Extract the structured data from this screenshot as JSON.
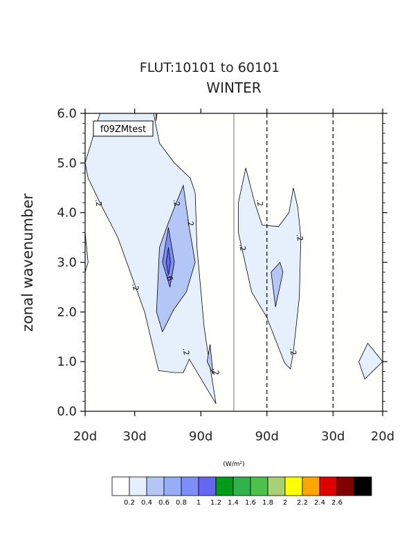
{
  "chart_data": {
    "type": "contour",
    "title": "FLUT:10101 to 60101",
    "subtitle": "WINTER",
    "ylabel": "zonal wavenumber",
    "xlabel": "",
    "case_label": "f09ZMtest",
    "ylim": [
      0,
      6
    ],
    "y_ticks": [
      "0.0",
      "1.0",
      "2.0",
      "3.0",
      "4.0",
      "5.0",
      "6.0"
    ],
    "x_ticks": [
      "20d",
      "30d",
      "90d",
      "90d",
      "30d",
      "20d"
    ],
    "x_tick_positions": [
      -0.5,
      -0.3333,
      -0.1111,
      0.1111,
      0.3333,
      0.5
    ],
    "x_range": [
      -0.5,
      0.5
    ],
    "reference_lines": [
      {
        "x": 0.0,
        "style": "solid"
      },
      {
        "x": 0.1111,
        "style": "dashed"
      },
      {
        "x": 0.3333,
        "style": "dashed"
      }
    ],
    "contour_labels": [
      {
        "text": ".2",
        "x": -0.454,
        "y": 4.2
      },
      {
        "text": ".2",
        "x": -0.33,
        "y": 2.5
      },
      {
        "text": ".2",
        "x": -0.192,
        "y": 4.2
      },
      {
        "text": ".2",
        "x": -0.145,
        "y": 3.8
      },
      {
        "text": ".2",
        "x": -0.16,
        "y": 1.2
      },
      {
        "text": ".2",
        "x": -0.06,
        "y": 0.8
      },
      {
        "text": ".6",
        "x": -0.215,
        "y": 2.7
      },
      {
        "text": ".2",
        "x": 0.03,
        "y": 3.3
      },
      {
        "text": ".2",
        "x": 0.088,
        "y": 4.2
      },
      {
        "text": ".2",
        "x": 0.222,
        "y": 3.5
      },
      {
        "text": ".2",
        "x": 0.2,
        "y": 1.2
      }
    ],
    "colorbar": {
      "units": "(W/m²)",
      "levels": [
        "0.2",
        "0.4",
        "0.6",
        "0.8",
        "1",
        "1.2",
        "1.4",
        "1.6",
        "1.8",
        "2",
        "2.2",
        "2.4",
        "2.6"
      ],
      "colors": [
        "#ffffff",
        "#e6f0fc",
        "#b4c6f6",
        "#97adf7",
        "#7e8ef8",
        "#6666ee",
        "#009b1a",
        "#33b14a",
        "#4cc24d",
        "#a8d176",
        "#ffff00",
        "#ffa500",
        "#e00000",
        "#7f0000",
        "#000000"
      ]
    },
    "regions": [
      {
        "level": 0.2,
        "color": "#e6f0fc",
        "points": [
          [
            -0.5,
            5
          ],
          [
            -0.45,
            6
          ],
          [
            -0.27,
            6
          ],
          [
            -0.25,
            5.4
          ],
          [
            -0.2,
            5
          ],
          [
            -0.147,
            4.7
          ],
          [
            -0.13,
            4.4
          ],
          [
            -0.124,
            3.3
          ],
          [
            -0.1,
            1.7
          ],
          [
            -0.083,
            1.0
          ],
          [
            -0.06,
            0.15
          ],
          [
            -0.09,
            0.45
          ],
          [
            -0.15,
            1.05
          ],
          [
            -0.17,
            0.78
          ],
          [
            -0.2,
            0.78
          ],
          [
            -0.253,
            0.82
          ],
          [
            -0.3,
            2
          ],
          [
            -0.33,
            2.5
          ],
          [
            -0.39,
            3.5
          ],
          [
            -0.45,
            4.2
          ],
          [
            -0.49,
            4.7
          ]
        ]
      },
      {
        "level": 0.2,
        "color": "#e6f0fc",
        "points": [
          [
            0.015,
            4.2
          ],
          [
            0.04,
            4.9
          ],
          [
            0.07,
            4.2
          ],
          [
            0.095,
            3.75
          ],
          [
            0.15,
            3.72
          ],
          [
            0.185,
            4.0
          ],
          [
            0.2,
            4.5
          ],
          [
            0.215,
            4.1
          ],
          [
            0.225,
            3.5
          ],
          [
            0.22,
            2.3
          ],
          [
            0.2,
            1.2
          ],
          [
            0.19,
            0.85
          ],
          [
            0.17,
            0.98
          ],
          [
            0.11,
            1.9
          ],
          [
            0.06,
            2.4
          ],
          [
            0.03,
            3.2
          ],
          [
            0.015,
            3.6
          ]
        ]
      },
      {
        "level": 0.2,
        "color": "#e6f0fc",
        "points": [
          [
            -0.5,
            3.6
          ],
          [
            -0.49,
            3.0
          ],
          [
            -0.5,
            2.8
          ]
        ]
      },
      {
        "level": 0.2,
        "color": "#e6f0fc",
        "points": [
          [
            0.42,
            1.0
          ],
          [
            0.45,
            1.37
          ],
          [
            0.5,
            1.0
          ],
          [
            0.44,
            0.65
          ]
        ]
      },
      {
        "level": 0.4,
        "color": "#b4c6f6",
        "points": [
          [
            -0.17,
            4.55
          ],
          [
            -0.15,
            3.7
          ],
          [
            -0.13,
            3.0
          ],
          [
            -0.16,
            2.4
          ],
          [
            -0.202,
            2.05
          ],
          [
            -0.24,
            1.6
          ],
          [
            -0.26,
            2.0
          ],
          [
            -0.25,
            3.3
          ],
          [
            -0.22,
            3.8
          ]
        ]
      },
      {
        "level": 0.4,
        "color": "#b4c6f6",
        "points": [
          [
            -0.08,
            1.35
          ],
          [
            -0.07,
            0.75
          ],
          [
            -0.09,
            1.0
          ]
        ]
      },
      {
        "level": 0.4,
        "color": "#b4c6f6",
        "points": [
          [
            0.155,
            3.0
          ],
          [
            0.125,
            2.8
          ],
          [
            0.14,
            2.1
          ],
          [
            0.165,
            2.8
          ]
        ]
      },
      {
        "level": 0.4,
        "color": "#b4c6f6",
        "points": [
          [
            -0.262,
            6.0
          ],
          [
            -0.262,
            5.85
          ],
          [
            -0.258,
            6.0
          ]
        ]
      },
      {
        "level": 0.6,
        "color": "#7e8ef8",
        "points": [
          [
            -0.22,
            3.7
          ],
          [
            -0.2,
            3.0
          ],
          [
            -0.215,
            2.5
          ],
          [
            -0.24,
            3.0
          ]
        ]
      },
      {
        "level": 0.8,
        "color": "#6666ee",
        "points": [
          [
            -0.22,
            3.3
          ],
          [
            -0.213,
            3.0
          ],
          [
            -0.22,
            2.75
          ],
          [
            -0.228,
            3.0
          ]
        ]
      }
    ]
  }
}
